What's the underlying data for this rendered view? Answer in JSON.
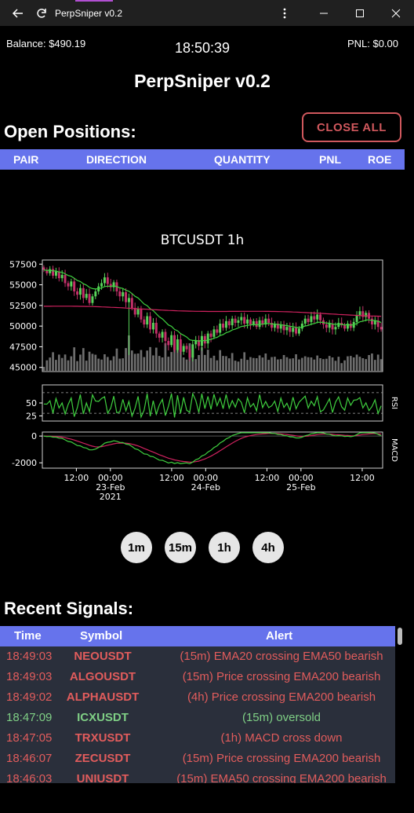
{
  "window": {
    "title": "PerpSniper v0.2",
    "accent_color": "#b14fd1"
  },
  "header": {
    "balance": "Balance: $490.19",
    "clock": "18:50:39",
    "pnl": "PNL: $0.00",
    "app_title": "PerpSniper v0.2"
  },
  "positions": {
    "title": "Open Positions:",
    "close_all_label": "CLOSE ALL",
    "columns": [
      "PAIR",
      "DIRECTION",
      "QUANTITY",
      "PNL",
      "ROE"
    ],
    "rows": []
  },
  "chart_data": {
    "type": "candlestick",
    "title": "BTCUSDT 1h",
    "price_axis": {
      "ticks": [
        45000,
        47500,
        50000,
        52500,
        55000,
        57500
      ],
      "ylim": [
        44500,
        58000
      ]
    },
    "rsi_axis": {
      "label": "RSI",
      "ticks": [
        25,
        50
      ],
      "ylim": [
        15,
        85
      ],
      "guide_levels": [
        30,
        70
      ]
    },
    "macd_axis": {
      "label": "MACD",
      "ticks": [
        -2000,
        0
      ],
      "ylim": [
        -2400,
        300
      ]
    },
    "x_ticks": [
      {
        "at": 0.1,
        "text": "12:00"
      },
      {
        "at": 0.2,
        "text": "00:00\n23-Feb\n2021"
      },
      {
        "at": 0.38,
        "text": "12:00"
      },
      {
        "at": 0.48,
        "text": "00:00\n24-Feb"
      },
      {
        "at": 0.66,
        "text": "12:00"
      },
      {
        "at": 0.76,
        "text": "00:00\n25-Feb"
      },
      {
        "at": 0.94,
        "text": "12:00"
      }
    ],
    "close": [
      56800,
      56400,
      56900,
      56100,
      56600,
      55800,
      56200,
      55200,
      54800,
      55400,
      54200,
      53800,
      54600,
      53400,
      53900,
      52800,
      53600,
      54200,
      54800,
      55200,
      55900,
      55100,
      54700,
      55300,
      54200,
      53600,
      54100,
      52900,
      53400,
      52200,
      51400,
      52100,
      50800,
      50200,
      51200,
      49600,
      50400,
      49100,
      48600,
      49300,
      48200,
      47700,
      48900,
      47100,
      48400,
      46900,
      47600,
      47200,
      46200,
      47800,
      48300,
      47600,
      48800,
      47900,
      49100,
      48700,
      49600,
      49200,
      50300,
      49800,
      50600,
      50100,
      50900,
      50400,
      50700,
      51100,
      50300,
      50800,
      50200,
      50600,
      49900,
      50700,
      50200,
      50900,
      50400,
      49800,
      50300,
      49700,
      50200,
      49500,
      49900,
      49300,
      49800,
      49100,
      49700,
      50300,
      50900,
      50500,
      51200,
      50800,
      51400,
      50700,
      50200,
      49800,
      50300,
      49600,
      49900,
      50400,
      50100,
      49700,
      50300,
      49800,
      50500,
      51300,
      51800,
      51100,
      51600,
      50900,
      50200,
      50700,
      49900,
      49600
    ],
    "series": [
      {
        "name": "EMA50",
        "color": "#3fcf3f"
      },
      {
        "name": "EMA200",
        "color": "#d0225f"
      }
    ],
    "colors": {
      "up": "#58d35a",
      "down": "#c4306a",
      "volume": "#6d6d6d"
    }
  },
  "timeframes": [
    "1m",
    "15m",
    "1h",
    "4h"
  ],
  "signals": {
    "title": "Recent Signals:",
    "columns": [
      "Time",
      "Symbol",
      "Alert"
    ],
    "colors": {
      "bearish": "#e15c5c",
      "bullish": "#7fcf85"
    },
    "rows": [
      {
        "time": "18:49:03",
        "symbol": "NEOUSDT",
        "alert": "(15m) EMA20 crossing EMA50 bearish",
        "tone": "bearish"
      },
      {
        "time": "18:49:03",
        "symbol": "ALGOUSDT",
        "alert": "(15m) Price crossing EMA200 bearish",
        "tone": "bearish"
      },
      {
        "time": "18:49:02",
        "symbol": "ALPHAUSDT",
        "alert": "(4h) Price crossing EMA200 bearish",
        "tone": "bearish"
      },
      {
        "time": "18:47:09",
        "symbol": "ICXUSDT",
        "alert": "(15m) oversold",
        "tone": "bullish"
      },
      {
        "time": "18:47:05",
        "symbol": "TRXUSDT",
        "alert": "(1h) MACD cross down",
        "tone": "bearish"
      },
      {
        "time": "18:46:07",
        "symbol": "ZECUSDT",
        "alert": "(15m) Price crossing EMA200 bearish",
        "tone": "bearish"
      },
      {
        "time": "18:46:03",
        "symbol": "UNIUSDT",
        "alert": "(15m) EMA50 crossing EMA200 bearish",
        "tone": "bearish"
      }
    ]
  }
}
